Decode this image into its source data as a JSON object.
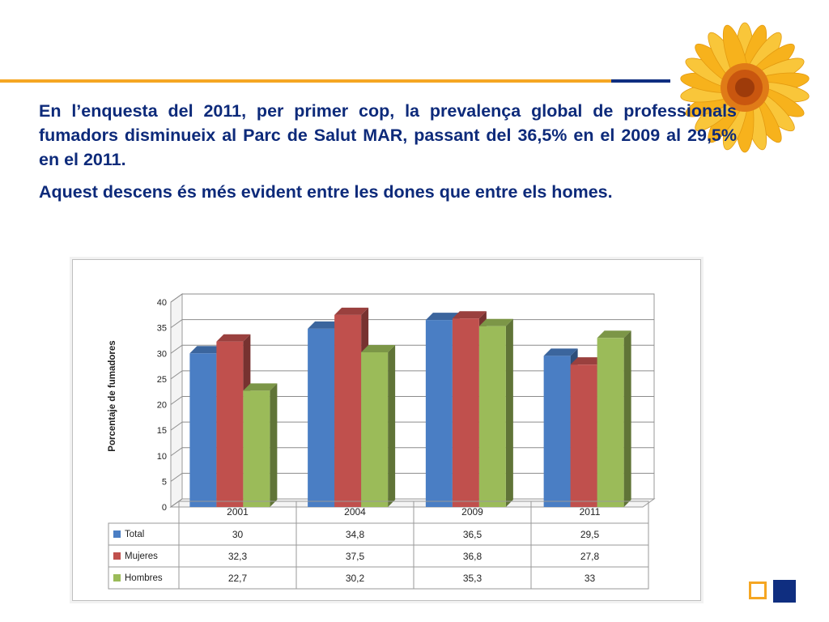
{
  "slide": {
    "paragraph_1": "En l’enquesta del 2011, per primer cop, la prevalença global de professionals fumadors disminueix al Parc de Salut MAR, passant del 36,5% en el 2009 al 29,5% en el 2011.",
    "paragraph_2": "Aquest descens és més evident entre les dones que entre els homes."
  },
  "colors": {
    "accent_orange": "#f5a623",
    "accent_navy": "#0f2e80",
    "text_navy": "#0d2a7a"
  },
  "chart_data": {
    "type": "bar",
    "style": "3d-clustered-column-with-data-table",
    "ylabel": "Porcentaje de fumadores",
    "xlabel": "",
    "ylim": [
      0,
      40
    ],
    "yticks": [
      0,
      5,
      10,
      15,
      20,
      25,
      30,
      35,
      40
    ],
    "grid": true,
    "categories": [
      "2001",
      "2004",
      "2009",
      "2011"
    ],
    "series": [
      {
        "name": "Total",
        "color": "#4a7ec4",
        "values": [
          30,
          34.8,
          36.5,
          29.5
        ],
        "labels": [
          "30",
          "34,8",
          "36,5",
          "29,5"
        ]
      },
      {
        "name": "Mujeres",
        "color": "#c0504d",
        "values": [
          32.3,
          37.5,
          36.8,
          27.8
        ],
        "labels": [
          "32,3",
          "37,5",
          "36,8",
          "27,8"
        ]
      },
      {
        "name": "Hombres",
        "color": "#9bbb59",
        "values": [
          22.7,
          30.2,
          35.3,
          33
        ],
        "labels": [
          "22,7",
          "30,2",
          "35,3",
          "33"
        ]
      }
    ]
  }
}
